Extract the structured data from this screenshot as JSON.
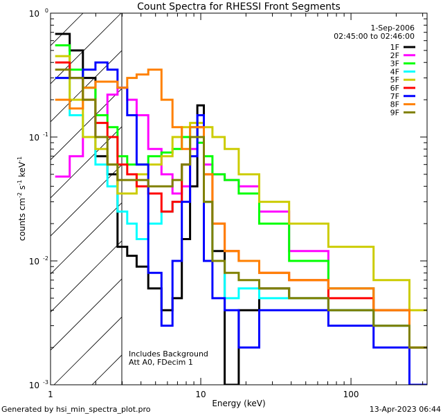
{
  "chart_data": {
    "type": "line",
    "title": "Count Spectra for RHESSI Front Segments",
    "xlabel": "Energy (keV)",
    "ylabel": "counts cm-2 s-1 keV-1",
    "xscale": "log",
    "yscale": "log",
    "xlim": [
      1,
      321
    ],
    "ylim": [
      0.001,
      1
    ],
    "x_ticks": [
      {
        "v": 1,
        "label": "1"
      },
      {
        "v": 10,
        "label": "10"
      },
      {
        "v": 100,
        "label": "100"
      }
    ],
    "y_ticks": [
      {
        "v": 0.001,
        "base": "10",
        "exp": "-3"
      },
      {
        "v": 0.01,
        "base": "10",
        "exp": "-2"
      },
      {
        "v": 0.1,
        "base": "10",
        "exp": "-1"
      },
      {
        "v": 1,
        "base": "10",
        "exp": "0"
      }
    ],
    "shaded_region_keV": [
      1,
      3
    ],
    "annotations": [
      "Includes Background",
      "Att A0, FDecim 1"
    ],
    "date": "1-Sep-2006",
    "time_range": "02:45:00 to 02:46:00",
    "legend_position": "top-right",
    "x": [
      1.2,
      1.5,
      1.8,
      2.2,
      2.6,
      3,
      3.5,
      4,
      5,
      6,
      7,
      8,
      9,
      10,
      11,
      13,
      16,
      20,
      30,
      50,
      100,
      200,
      300
    ],
    "series": [
      {
        "name": "1F",
        "color": "#000000",
        "values": [
          0.68,
          0.5,
          0.3,
          0.07,
          0.05,
          0.013,
          0.011,
          0.009,
          0.006,
          0.004,
          0.005,
          0.015,
          0.04,
          0.18,
          0.03,
          0.012,
          0.001,
          0.004,
          0.006,
          0.005,
          0.004,
          0.003,
          0.001
        ]
      },
      {
        "name": "2F",
        "color": "#ff00ff",
        "values": [
          0.048,
          0.07,
          0.1,
          0.15,
          0.22,
          0.25,
          0.2,
          0.15,
          0.08,
          0.05,
          0.035,
          0.04,
          0.08,
          0.15,
          0.06,
          0.05,
          0.045,
          0.04,
          0.025,
          0.012,
          0.006,
          0.004,
          0.002
        ]
      },
      {
        "name": "3F",
        "color": "#00ff00",
        "values": [
          0.55,
          0.35,
          0.25,
          0.15,
          0.12,
          0.07,
          0.06,
          0.06,
          0.07,
          0.075,
          0.08,
          0.1,
          0.12,
          0.09,
          0.07,
          0.05,
          0.045,
          0.035,
          0.02,
          0.01,
          0.006,
          0.004,
          0.002
        ]
      },
      {
        "name": "4F",
        "color": "#00ffff",
        "values": [
          0.3,
          0.15,
          0.1,
          0.06,
          0.04,
          0.025,
          0.02,
          0.015,
          0.02,
          0.025,
          0.03,
          0.06,
          0.12,
          0.15,
          0.03,
          0.01,
          0.005,
          0.006,
          0.005,
          0.005,
          0.004,
          0.003,
          0.002
        ]
      },
      {
        "name": "5F",
        "color": "#cccc00",
        "values": [
          0.45,
          0.2,
          0.1,
          0.08,
          0.06,
          0.035,
          0.035,
          0.05,
          0.06,
          0.07,
          0.1,
          0.12,
          0.13,
          0.13,
          0.12,
          0.1,
          0.08,
          0.05,
          0.03,
          0.02,
          0.013,
          0.007,
          0.004
        ]
      },
      {
        "name": "6F",
        "color": "#ff0000",
        "values": [
          0.4,
          0.3,
          0.2,
          0.13,
          0.1,
          0.06,
          0.05,
          0.04,
          0.035,
          0.025,
          0.03,
          0.06,
          0.1,
          0.12,
          0.05,
          0.02,
          0.012,
          0.01,
          0.008,
          0.007,
          0.005,
          0.004,
          0.002
        ]
      },
      {
        "name": "7F",
        "color": "#0000ff",
        "values": [
          0.3,
          0.3,
          0.35,
          0.4,
          0.35,
          0.25,
          0.15,
          0.06,
          0.008,
          0.003,
          0.01,
          0.03,
          0.07,
          0.15,
          0.01,
          0.005,
          0.004,
          0.002,
          0.004,
          0.004,
          0.003,
          0.002,
          0.001
        ]
      },
      {
        "name": "8F",
        "color": "#ff8000",
        "values": [
          0.2,
          0.17,
          0.25,
          0.28,
          0.28,
          0.25,
          0.3,
          0.32,
          0.35,
          0.2,
          0.12,
          0.08,
          0.12,
          0.12,
          0.05,
          0.02,
          0.012,
          0.01,
          0.008,
          0.007,
          0.006,
          0.004,
          0.002
        ]
      },
      {
        "name": "9F",
        "color": "#808000",
        "values": [
          0.35,
          0.3,
          0.2,
          0.1,
          0.06,
          0.045,
          0.045,
          0.045,
          0.04,
          0.04,
          0.045,
          0.06,
          0.1,
          0.1,
          0.03,
          0.01,
          0.008,
          0.007,
          0.006,
          0.005,
          0.004,
          0.003,
          0.002
        ]
      }
    ]
  },
  "footer": {
    "generated_by": "Generated by hsi_min_spectra_plot.pro",
    "timestamp": "13-Apr-2023 06:44"
  }
}
